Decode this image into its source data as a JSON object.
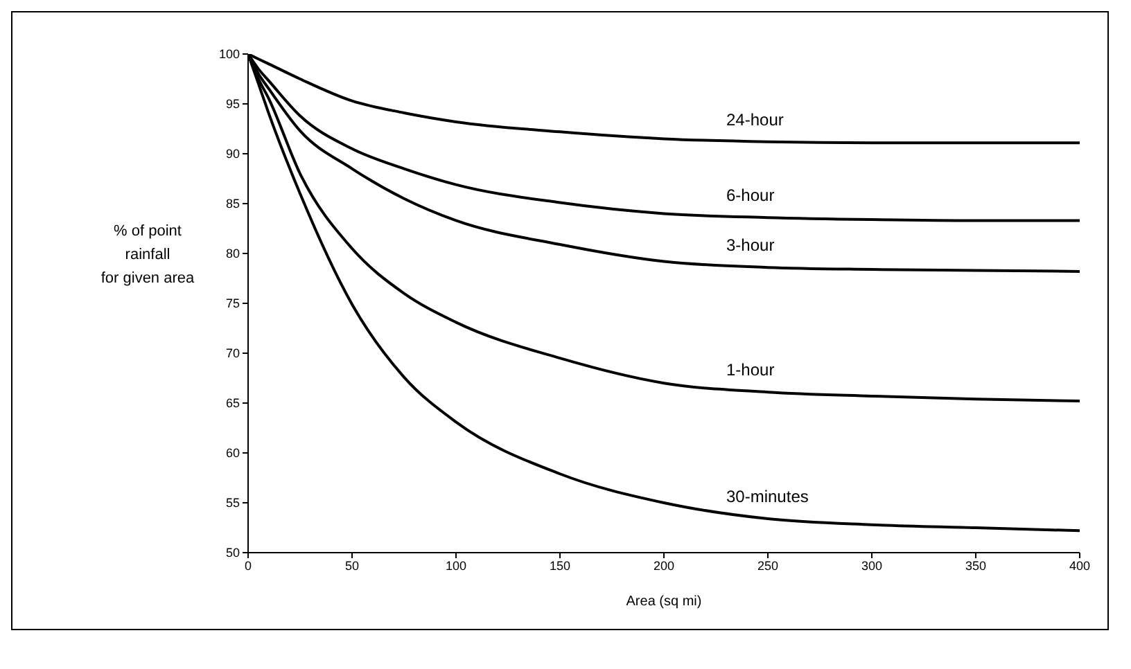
{
  "chart_data": {
    "type": "line",
    "xlabel": "Area (sq mi)",
    "ylabel": "% of point rainfall for given area",
    "x": [
      0,
      5,
      10,
      25,
      50,
      75,
      100,
      150,
      200,
      250,
      300,
      350,
      400
    ],
    "series": [
      {
        "name": "24-hour",
        "color": "#000000",
        "values": [
          100,
          99.5,
          99,
          97.5,
          95.3,
          94.1,
          93.2,
          92.2,
          91.5,
          91.2,
          91.1,
          91.1,
          91.1
        ]
      },
      {
        "name": "6-hour",
        "color": "#000000",
        "values": [
          100,
          98.5,
          97.3,
          93.8,
          90.5,
          88.5,
          86.9,
          85.1,
          84,
          83.6,
          83.4,
          83.3,
          83.3
        ]
      },
      {
        "name": "3-hour",
        "color": "#000000",
        "values": [
          100,
          98,
          96.5,
          92.3,
          88.5,
          85.5,
          83.3,
          80.9,
          79.2,
          78.6,
          78.4,
          78.3,
          78.2
        ]
      },
      {
        "name": "1-hour",
        "color": "#000000",
        "values": [
          100,
          97.5,
          95.5,
          88,
          80.5,
          76,
          73.1,
          69.5,
          67,
          66.1,
          65.7,
          65.4,
          65.2
        ]
      },
      {
        "name": "30-minutes",
        "color": "#000000",
        "values": [
          100,
          97,
          94,
          86,
          74.9,
          67.6,
          63.1,
          57.9,
          55,
          53.4,
          52.8,
          52.5,
          52.2
        ]
      }
    ],
    "xlim": [
      0,
      400
    ],
    "xticks": [
      0,
      50,
      100,
      150,
      200,
      250,
      300,
      350,
      400
    ],
    "ylim": [
      50,
      100
    ],
    "yticks": [
      50,
      55,
      60,
      65,
      70,
      75,
      80,
      85,
      90,
      95,
      100
    ],
    "grid": false,
    "legend": false,
    "marker": "none",
    "line_style": "solid"
  }
}
